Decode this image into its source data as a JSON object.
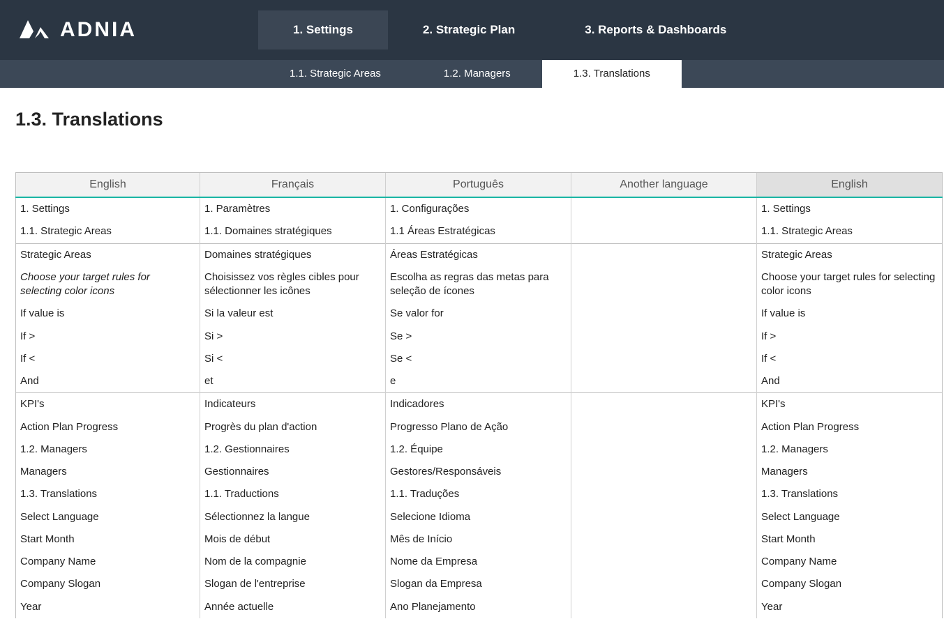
{
  "brand": {
    "name": "ADNIA"
  },
  "mainTabs": [
    {
      "label": "1. Settings",
      "active": true
    },
    {
      "label": "2. Strategic Plan",
      "active": false
    },
    {
      "label": "3. Reports & Dashboards",
      "active": false
    }
  ],
  "subTabs": [
    {
      "label": "1.1. Strategic Areas",
      "active": false
    },
    {
      "label": "1.2. Managers",
      "active": false
    },
    {
      "label": "1.3. Translations",
      "active": true
    }
  ],
  "pageTitle": "1.3. Translations",
  "columns": [
    "English",
    "Français",
    "Português",
    "Another language",
    "English"
  ],
  "rows": [
    {
      "divider": false,
      "italic": [],
      "cells": [
        "1. Settings",
        "1. Paramètres",
        "1. Configurações",
        "",
        "1. Settings"
      ]
    },
    {
      "divider": false,
      "italic": [],
      "cells": [
        "1.1. Strategic Areas",
        "1.1. Domaines stratégiques",
        "1.1 Áreas Estratégicas",
        "",
        "1.1. Strategic Areas"
      ]
    },
    {
      "divider": true,
      "italic": [],
      "cells": [
        "Strategic Areas",
        "Domaines stratégiques",
        "Áreas Estratégicas",
        "",
        "Strategic Areas"
      ]
    },
    {
      "divider": false,
      "italic": [
        0
      ],
      "truncated": true,
      "cells": [
        "Choose your target rules for selecting color icons",
        "Choisissez vos règles cibles pour sélectionner les icônes",
        "Escolha as regras das metas  para seleção de ícones",
        "",
        "Choose your target rules for selecting color icons"
      ]
    },
    {
      "divider": false,
      "italic": [],
      "cells": [
        "If value is",
        "Si la valeur est",
        "Se valor for",
        "",
        "If value is"
      ]
    },
    {
      "divider": false,
      "italic": [],
      "cells": [
        "If >",
        "Si >",
        "Se >",
        "",
        "If >"
      ]
    },
    {
      "divider": false,
      "italic": [],
      "cells": [
        "If <",
        "Si <",
        "Se <",
        "",
        "If <"
      ]
    },
    {
      "divider": false,
      "italic": [],
      "cells": [
        "And",
        "et",
        "e",
        "",
        "And"
      ]
    },
    {
      "divider": true,
      "italic": [],
      "cells": [
        "KPI's",
        "Indicateurs",
        "Indicadores",
        "",
        "KPI's"
      ]
    },
    {
      "divider": false,
      "italic": [],
      "cells": [
        "Action Plan Progress",
        "Progrès du plan d'action",
        "Progresso Plano de Ação",
        "",
        "Action Plan Progress"
      ]
    },
    {
      "divider": false,
      "italic": [],
      "cells": [
        "1.2. Managers",
        "1.2. Gestionnaires",
        "1.2. Équipe",
        "",
        "1.2. Managers"
      ]
    },
    {
      "divider": false,
      "italic": [],
      "cells": [
        "Managers",
        "Gestionnaires",
        "Gestores/Responsáveis",
        "",
        "Managers"
      ]
    },
    {
      "divider": false,
      "italic": [],
      "cells": [
        "1.3. Translations",
        "1.1. Traductions",
        "1.1. Traduções",
        "",
        "1.3. Translations"
      ]
    },
    {
      "divider": false,
      "italic": [],
      "cells": [
        "Select Language",
        "Sélectionnez la langue",
        "Selecione Idioma",
        "",
        "Select Language"
      ]
    },
    {
      "divider": false,
      "italic": [],
      "cells": [
        "Start Month",
        "Mois de début",
        "Mês de Início",
        "",
        "Start Month"
      ]
    },
    {
      "divider": false,
      "italic": [],
      "cells": [
        "Company Name",
        "Nom de la compagnie",
        "Nome da Empresa",
        "",
        "Company Name"
      ]
    },
    {
      "divider": false,
      "italic": [],
      "cells": [
        "Company Slogan",
        "Slogan de l'entreprise",
        "Slogan da Empresa",
        "",
        "Company Slogan"
      ]
    },
    {
      "divider": false,
      "italic": [],
      "cells": [
        "Year",
        "Année actuelle",
        "Ano Planejamento",
        "",
        "Year"
      ]
    }
  ],
  "colors": {
    "topbar": "#2b3643",
    "subbar": "#3c4857",
    "accent": "#19b5a4"
  }
}
